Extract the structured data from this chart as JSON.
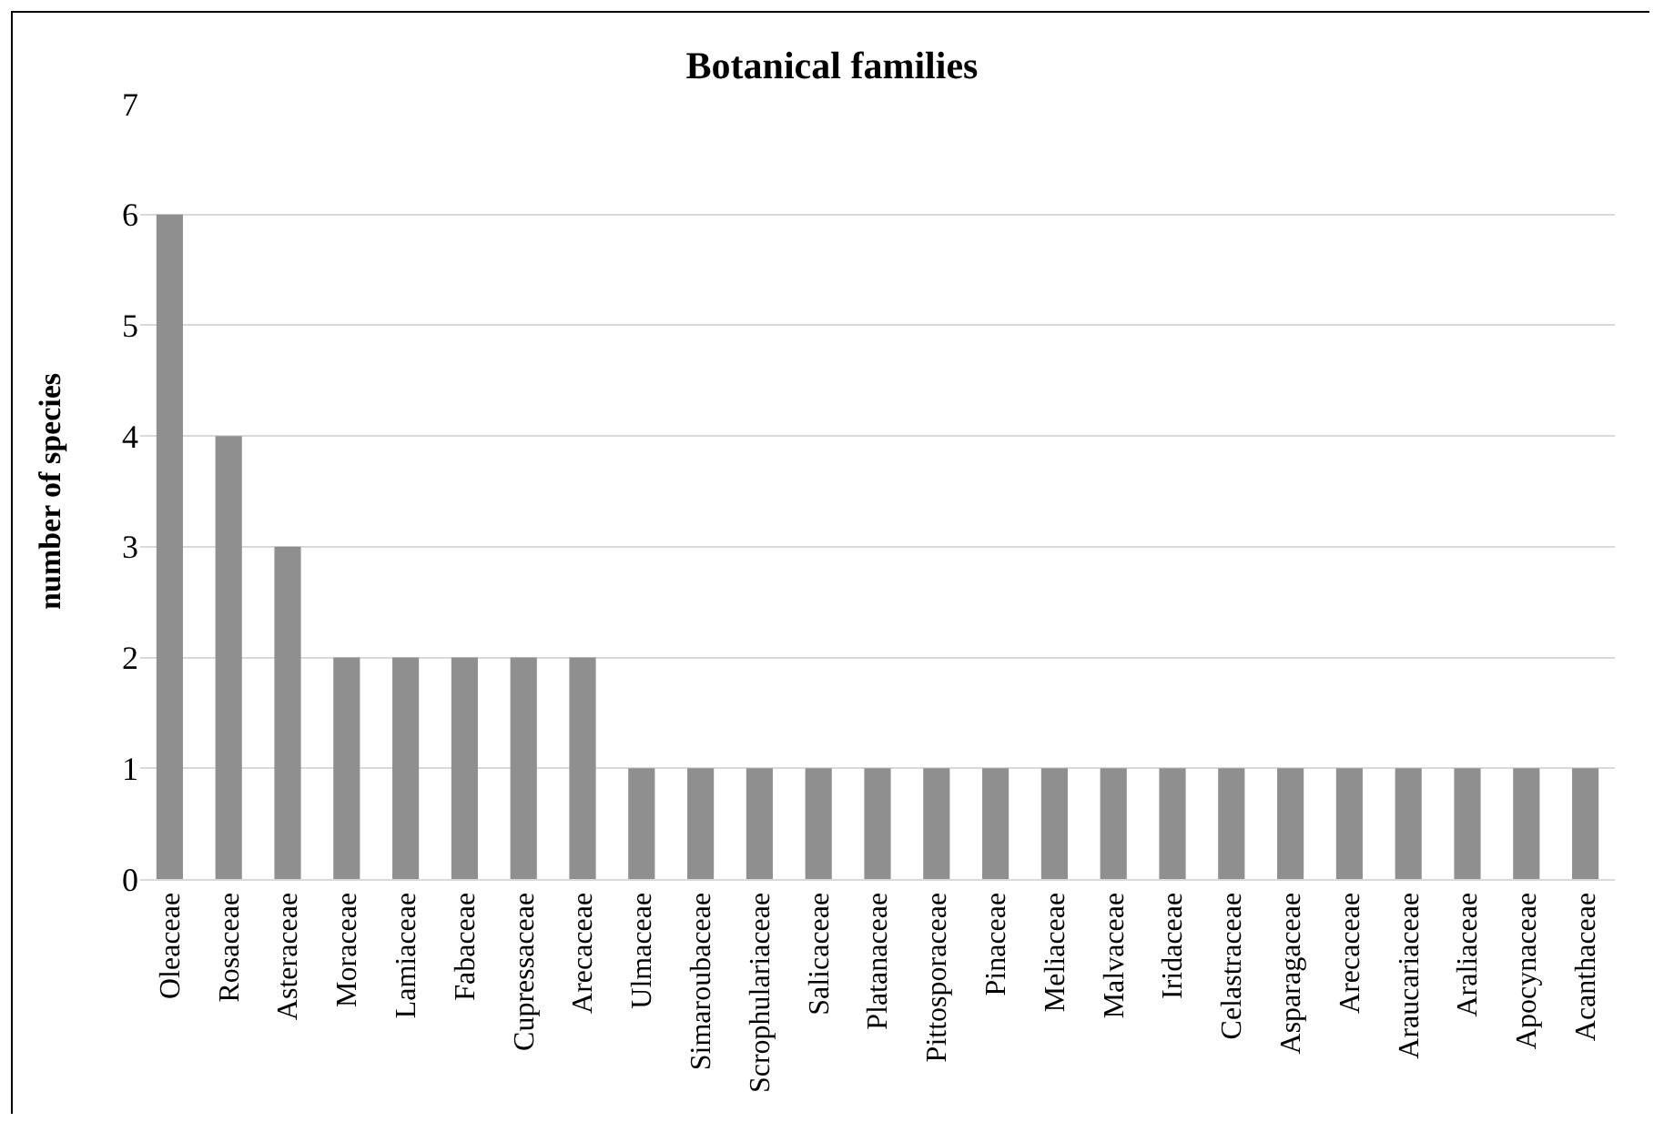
{
  "chart_data": {
    "type": "bar",
    "title": "Botanical families",
    "ylabel": "number of species",
    "categories": [
      "Oleaceae",
      "Rosaceae",
      "Asteraceae",
      "Moraceae",
      "Lamiaceae",
      "Fabaceae",
      "Cupressaceae",
      "Arecaceae",
      "Ulmaceae",
      "Simaroubaceae",
      "Scrophulariaceae",
      "Salicaceae",
      "Platanaceae",
      "Pittosporaceae",
      "Pinaceae",
      "Meliaceae",
      "Malvaceae",
      "Iridaceae",
      "Celastraceae",
      "Asparagaceae",
      "Arecaceae",
      "Araucariaceae",
      "Araliaceae",
      "Apocynaceae",
      "Acanthaceae"
    ],
    "values": [
      6,
      4,
      3,
      2,
      2,
      2,
      2,
      2,
      1,
      1,
      1,
      1,
      1,
      1,
      1,
      1,
      1,
      1,
      1,
      1,
      1,
      1,
      1,
      1,
      1
    ],
    "color": "#8f8f8f",
    "ylim": [
      0,
      7
    ],
    "yticks": [
      0,
      1,
      2,
      3,
      4,
      5,
      6,
      7
    ],
    "grid": "y"
  }
}
